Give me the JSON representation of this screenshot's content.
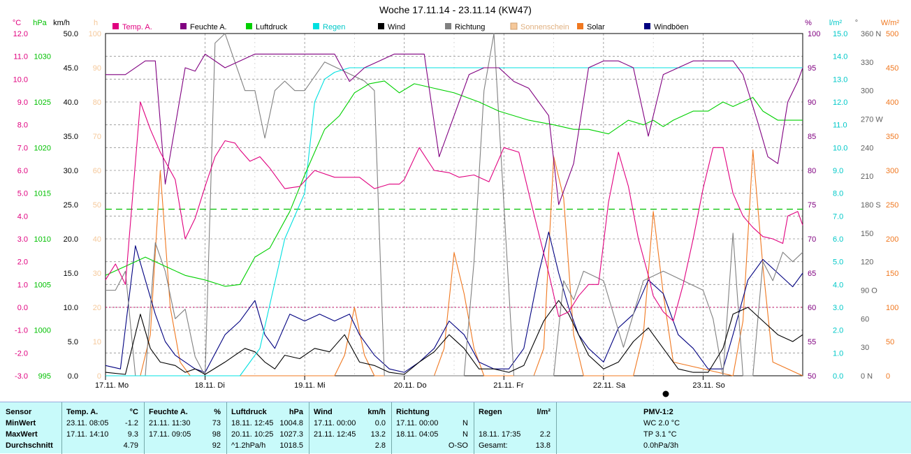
{
  "title": "Woche 17.11.14 - 23.11.14 (KW47)",
  "legend": [
    {
      "label": "Temp. A.",
      "color": "#e0007f"
    },
    {
      "label": "Feuchte A.",
      "color": "#800080"
    },
    {
      "label": "Luftdruck",
      "color": "#00d000"
    },
    {
      "label": "Regen",
      "color": "#00e0e0"
    },
    {
      "label": "Wind",
      "color": "#000000"
    },
    {
      "label": "Richtung",
      "color": "#808080"
    },
    {
      "label": "Sonnenschein",
      "color": "#f5c89a"
    },
    {
      "label": "Solar",
      "color": "#f07820"
    },
    {
      "label": "Windböen",
      "color": "#000080"
    }
  ],
  "axis_units": {
    "temp": "°C",
    "pressure": "hPa",
    "wind": "km/h",
    "sun": "h",
    "humidity": "%",
    "rain": "l/m²",
    "direction": "°",
    "solar": "W/m²"
  },
  "axes": {
    "temp_ticks": [
      "12.0",
      "11.0",
      "10.0",
      "9.0",
      "8.0",
      "7.0",
      "6.0",
      "5.0",
      "4.0",
      "3.0",
      "2.0",
      "1.0",
      "0.0",
      "-1.0",
      "-2.0",
      "-3.0"
    ],
    "pressure_ticks": [
      "1030",
      "1025",
      "1020",
      "1015",
      "1010",
      "1005",
      "1000",
      "995"
    ],
    "wind_ticks": [
      "50.0",
      "45.0",
      "40.0",
      "35.0",
      "30.0",
      "25.0",
      "20.0",
      "15.0",
      "10.0",
      "5.0",
      "0.0"
    ],
    "sun_ticks": [
      "100",
      "90",
      "80",
      "70",
      "60",
      "50",
      "40",
      "30",
      "20",
      "10",
      "0"
    ],
    "humidity_ticks": [
      "100",
      "95",
      "90",
      "85",
      "80",
      "75",
      "70",
      "65",
      "60",
      "55",
      "50"
    ],
    "rain_ticks": [
      "15.0",
      "14.0",
      "13.0",
      "12.0",
      "11.0",
      "10.0",
      "9.0",
      "8.0",
      "7.0",
      "6.0",
      "5.0",
      "4.0",
      "3.0",
      "2.0",
      "1.0",
      "0.0"
    ],
    "direction_ticks": [
      "360 N",
      "330",
      "300",
      "270 W",
      "240",
      "210",
      "180 S",
      "150",
      "120",
      "90 O",
      "60",
      "30",
      "0 N"
    ],
    "solar_ticks": [
      "500",
      "450",
      "400",
      "350",
      "300",
      "250",
      "200",
      "150",
      "100",
      "50",
      "0"
    ]
  },
  "day_labels": [
    "17.11. Mo",
    "18.11. Di",
    "19.11. Mi",
    "20.11. Do",
    "21.11. Fr",
    "22.11. Sa",
    "23.11. So"
  ],
  "chart_data": {
    "type": "line",
    "title": "Woche 17.11.14 - 23.11.14 (KW47)",
    "x_unit": "days since 17.11. 00:00",
    "xlim": [
      0,
      7
    ],
    "series": [
      {
        "name": "Temp. A.",
        "unit": "°C",
        "ylim": [
          -3,
          12
        ],
        "color": "#e0007f",
        "x": [
          0,
          0.1,
          0.2,
          0.35,
          0.45,
          0.55,
          0.7,
          0.8,
          0.9,
          1.0,
          1.1,
          1.2,
          1.3,
          1.35,
          1.45,
          1.55,
          1.65,
          1.8,
          1.95,
          2.1,
          2.3,
          2.45,
          2.55,
          2.7,
          2.85,
          2.95,
          3.0,
          3.15,
          3.3,
          3.45,
          3.55,
          3.7,
          3.85,
          4.0,
          4.15,
          4.3,
          4.45,
          4.55,
          4.65,
          4.75,
          4.85,
          4.95,
          5.05,
          5.15,
          5.25,
          5.35,
          5.45,
          5.5,
          5.6,
          5.7,
          5.8,
          5.9,
          6.0,
          6.1,
          6.2,
          6.3,
          6.4,
          6.5,
          6.6,
          6.7,
          6.8,
          6.85,
          6.95,
          7.0
        ],
        "y": [
          1.2,
          1.9,
          1.0,
          9.0,
          7.8,
          6.8,
          5.6,
          3.0,
          3.9,
          5.3,
          6.6,
          7.3,
          7.2,
          6.9,
          6.4,
          6.6,
          6.1,
          5.2,
          5.3,
          6.0,
          5.7,
          5.7,
          5.7,
          5.2,
          5.4,
          5.4,
          5.6,
          7.0,
          6.0,
          5.9,
          5.7,
          5.8,
          5.5,
          7.0,
          6.8,
          4.1,
          1.5,
          -0.4,
          -0.2,
          0.5,
          1.0,
          1.0,
          4.6,
          6.8,
          5.3,
          3.0,
          1.4,
          0.5,
          -0.2,
          -0.6,
          1.0,
          3.0,
          5.2,
          7.0,
          7.0,
          5.0,
          4.0,
          3.5,
          3.1,
          3.0,
          2.8,
          4.0,
          4.2,
          3.6
        ]
      },
      {
        "name": "Feuchte A.",
        "unit": "%",
        "ylim": [
          50,
          100
        ],
        "color": "#800080",
        "x": [
          0,
          0.2,
          0.4,
          0.5,
          0.6,
          0.8,
          0.9,
          1.0,
          1.2,
          1.35,
          1.5,
          1.65,
          1.8,
          1.9,
          2.3,
          2.45,
          2.6,
          2.75,
          2.9,
          3.05,
          3.2,
          3.35,
          3.5,
          3.6,
          3.65,
          3.8,
          3.95,
          4.1,
          4.25,
          4.45,
          4.55,
          4.7,
          4.85,
          5.0,
          5.15,
          5.3,
          5.45,
          5.6,
          5.75,
          5.9,
          6.05,
          6.2,
          6.3,
          6.4,
          6.55,
          6.65,
          6.75,
          6.85,
          6.95,
          7.0
        ],
        "y": [
          94,
          94,
          96,
          96,
          78,
          95,
          94.5,
          97,
          95,
          96,
          97,
          97,
          97,
          97,
          97,
          93,
          95,
          96,
          97,
          97,
          97,
          82,
          88,
          92,
          94,
          95,
          95,
          93,
          92,
          88,
          75,
          81,
          95,
          96,
          96,
          95,
          85,
          94,
          95,
          96,
          96,
          96,
          96,
          94,
          87,
          82,
          81,
          90,
          93,
          95
        ]
      },
      {
        "name": "Luftdruck",
        "unit": "hPa",
        "ylim": [
          995,
          1032.5
        ],
        "color": "#00d000",
        "x": [
          0,
          0.2,
          0.4,
          0.6,
          0.8,
          1.0,
          1.2,
          1.35,
          1.5,
          1.65,
          1.85,
          2.0,
          2.2,
          2.35,
          2.5,
          2.65,
          2.8,
          2.95,
          3.1,
          3.3,
          3.5,
          3.75,
          3.95,
          4.1,
          4.25,
          4.5,
          4.7,
          4.85,
          5.05,
          5.25,
          5.4,
          5.5,
          5.6,
          5.7,
          5.8,
          5.9,
          6.05,
          6.2,
          6.3,
          6.5,
          6.6,
          6.75,
          6.9,
          7.0
        ],
        "y": [
          1006,
          1007,
          1008,
          1007,
          1006,
          1005.5,
          1004.8,
          1005,
          1008,
          1009,
          1013,
          1017,
          1022,
          1023.5,
          1026,
          1027,
          1027.3,
          1026,
          1027,
          1026.5,
          1026,
          1025,
          1024,
          1023.5,
          1023,
          1022.5,
          1022,
          1022,
          1021.5,
          1023,
          1022.5,
          1023,
          1022.3,
          1023,
          1023.5,
          1024,
          1024,
          1025,
          1024.5,
          1025.5,
          1024,
          1023,
          1023,
          1023
        ]
      },
      {
        "name": "Regen",
        "unit": "l/m²",
        "ylim": [
          0,
          15
        ],
        "color": "#00e0e0",
        "x": [
          0,
          1.35,
          1.55,
          1.8,
          2.0,
          2.1,
          2.2,
          2.3,
          2.45,
          3.0,
          7.0
        ],
        "y": [
          0,
          0,
          1.2,
          6.0,
          8.0,
          12.0,
          13.0,
          13.3,
          13.5,
          13.5,
          13.5
        ]
      },
      {
        "name": "Wind",
        "unit": "km/h",
        "ylim": [
          0,
          50
        ],
        "color": "#000000",
        "x": [
          0,
          0.2,
          0.35,
          0.45,
          0.55,
          0.7,
          0.8,
          0.9,
          1.0,
          1.2,
          1.3,
          1.4,
          1.5,
          1.6,
          1.7,
          1.8,
          1.95,
          2.1,
          2.25,
          2.4,
          2.55,
          2.7,
          2.85,
          3.0,
          3.15,
          3.3,
          3.45,
          3.6,
          3.75,
          3.9,
          4.05,
          4.2,
          4.4,
          4.55,
          4.65,
          4.75,
          4.85,
          5.0,
          5.15,
          5.3,
          5.45,
          5.6,
          5.75,
          5.9,
          6.05,
          6.2,
          6.3,
          6.45,
          6.6,
          6.75,
          6.9,
          7.0
        ],
        "y": [
          0.5,
          0.2,
          9,
          4,
          2,
          1.5,
          0.5,
          1,
          0.2,
          2,
          3,
          4,
          3.5,
          2,
          1,
          3,
          2.5,
          4,
          3.5,
          6,
          2,
          1.5,
          0.5,
          0.2,
          2,
          3.5,
          6,
          4,
          1,
          1,
          0.5,
          1.5,
          8,
          11,
          9,
          6,
          3,
          1,
          2,
          5,
          7,
          4,
          1,
          0.5,
          0.5,
          4,
          9,
          10,
          8,
          6,
          5,
          6
        ]
      },
      {
        "name": "Richtung",
        "unit": "°",
        "ylim": [
          0,
          360
        ],
        "color": "#808080",
        "x": [
          0,
          0.1,
          0.2,
          0.3,
          0.4,
          0.5,
          0.6,
          0.7,
          0.8,
          0.9,
          1.0,
          1.1,
          1.2,
          1.3,
          1.4,
          1.5,
          1.6,
          1.7,
          1.8,
          1.9,
          2.0,
          2.2,
          2.4,
          2.6,
          2.7,
          2.8,
          3.0,
          3.2,
          3.4,
          3.6,
          3.7,
          3.8,
          3.9,
          4.1,
          4.3,
          4.5,
          4.6,
          4.7,
          4.8,
          5.0,
          5.2,
          5.4,
          5.6,
          5.8,
          6.0,
          6.1,
          6.2,
          6.3,
          6.4,
          6.5,
          6.6,
          6.7,
          6.8,
          6.9,
          7.0
        ],
        "y": [
          90,
          90,
          110,
          0,
          0,
          140,
          110,
          60,
          70,
          20,
          0,
          350,
          360,
          330,
          300,
          300,
          250,
          300,
          310,
          300,
          300,
          330,
          320,
          310,
          300,
          0,
          0,
          0,
          0,
          0,
          120,
          300,
          360,
          0,
          0,
          0,
          100,
          80,
          110,
          100,
          30,
          100,
          110,
          100,
          90,
          60,
          0,
          150,
          0,
          0,
          120,
          100,
          130,
          120,
          130
        ]
      },
      {
        "name": "Windböen",
        "unit": "km/h",
        "ylim": [
          0,
          50
        ],
        "color": "#000080",
        "x": [
          0,
          0.15,
          0.3,
          0.4,
          0.5,
          0.6,
          0.7,
          0.8,
          0.9,
          1.0,
          1.2,
          1.35,
          1.5,
          1.6,
          1.7,
          1.85,
          2.0,
          2.15,
          2.3,
          2.45,
          2.55,
          2.7,
          2.85,
          3.0,
          3.15,
          3.3,
          3.45,
          3.6,
          3.75,
          3.9,
          4.05,
          4.2,
          4.35,
          4.45,
          4.55,
          4.65,
          4.75,
          4.85,
          5.0,
          5.15,
          5.3,
          5.45,
          5.6,
          5.75,
          5.9,
          6.05,
          6.2,
          6.3,
          6.45,
          6.6,
          6.75,
          6.9,
          7.0
        ],
        "y": [
          1.5,
          1,
          19,
          14,
          9,
          5,
          3,
          2,
          1,
          0.5,
          6,
          8,
          11,
          6,
          4,
          9,
          8,
          9,
          8,
          9,
          6,
          3,
          1,
          0.5,
          2,
          4,
          8,
          6,
          2,
          1,
          1,
          4,
          15,
          21,
          15,
          10,
          6,
          4,
          2,
          7,
          9,
          14,
          12,
          6,
          4,
          1,
          1,
          6,
          14,
          17,
          15,
          13,
          15
        ]
      },
      {
        "name": "Solar",
        "unit": "W/m²",
        "ylim": [
          0,
          500
        ],
        "color": "#f07820",
        "x": [
          0,
          0.35,
          0.45,
          0.55,
          0.65,
          0.75,
          0.85,
          2.3,
          2.4,
          2.5,
          2.6,
          2.7,
          3.3,
          3.4,
          3.5,
          3.6,
          3.7,
          3.8,
          4.3,
          4.4,
          4.5,
          4.6,
          4.7,
          4.8,
          5.3,
          5.4,
          5.5,
          5.6,
          5.7,
          6.3,
          6.4,
          6.5,
          6.6,
          6.7,
          7.0
        ],
        "y": [
          0,
          0,
          60,
          300,
          100,
          20,
          0,
          0,
          30,
          100,
          30,
          0,
          0,
          40,
          180,
          120,
          40,
          0,
          0,
          40,
          320,
          260,
          60,
          0,
          0,
          60,
          240,
          120,
          20,
          0,
          80,
          330,
          160,
          20,
          0
        ]
      }
    ],
    "hlines": [
      {
        "name": "Luftdruck-Referenz",
        "value": 1013.25,
        "unit": "hPa",
        "color": "#00c000"
      },
      {
        "name": "Frostgrenze",
        "value": 0,
        "unit": "°C",
        "color": "#c00060"
      }
    ],
    "grid": true,
    "legend_position": "top"
  },
  "stats_table": {
    "headers": [
      {
        "name": "Sensor",
        "unit": ""
      },
      {
        "name": "Temp. A.",
        "unit": "°C"
      },
      {
        "name": "Feuchte A.",
        "unit": "%"
      },
      {
        "name": "Luftdruck",
        "unit": "hPa"
      },
      {
        "name": "Wind",
        "unit": "km/h"
      },
      {
        "name": "Richtung",
        "unit": ""
      },
      {
        "name": "Regen",
        "unit": "l/m²"
      },
      {
        "name": "PMV-1:2",
        "unit": ""
      }
    ],
    "row_labels": [
      "MinWert",
      "MaxWert",
      "Durchschnitt"
    ],
    "temp": [
      [
        "23.11. 08:05",
        "-1.2"
      ],
      [
        "17.11. 14:10",
        "9.3"
      ],
      [
        "",
        "4.79"
      ]
    ],
    "humidity": [
      [
        "21.11. 11:30",
        "73"
      ],
      [
        "17.11. 09:05",
        "98"
      ],
      [
        "",
        "92"
      ]
    ],
    "pressure": [
      [
        "18.11. 12:45",
        "1004.8"
      ],
      [
        "20.11. 10:25",
        "1027.3"
      ],
      [
        "^1.2hPa/h",
        "1018.5"
      ]
    ],
    "wind": [
      [
        "17.11. 00:00",
        "0.0"
      ],
      [
        "21.11. 12:45",
        "13.2"
      ],
      [
        "",
        "2.8"
      ]
    ],
    "direction": [
      [
        "17.11. 00:00",
        "N"
      ],
      [
        "18.11. 04:05",
        "N"
      ],
      [
        "",
        "O-SO"
      ]
    ],
    "rain": [
      [
        "",
        ""
      ],
      [
        "18.11. 17:35",
        "2.2"
      ],
      [
        "Gesamt:",
        "13.8"
      ]
    ],
    "pmv": [
      "WC 2.0 °C",
      "TP 3.1 °C",
      "0.0hPa/3h"
    ]
  }
}
